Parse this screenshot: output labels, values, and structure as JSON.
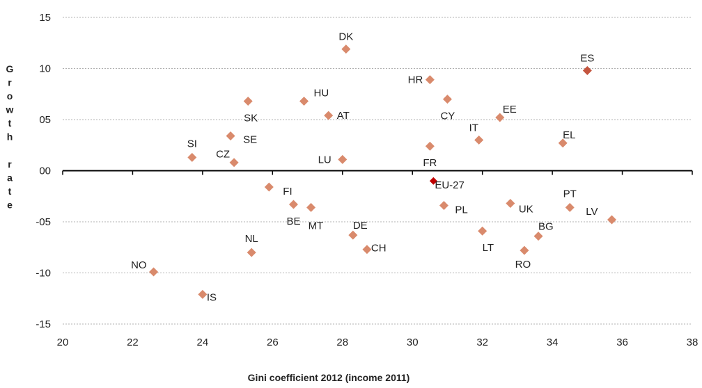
{
  "chart_data": {
    "type": "scatter",
    "xlabel": "Gini coefficient 2012 (income 2011)",
    "ylabel": "Growth rate",
    "xlim": [
      20,
      38
    ],
    "ylim": [
      -15,
      15
    ],
    "x_ticks": [
      "20",
      "22",
      "24",
      "26",
      "28",
      "30",
      "32",
      "34",
      "36",
      "38"
    ],
    "y_ticks": [
      "15",
      "10",
      "05",
      "00",
      "-05",
      "-10",
      "-15"
    ],
    "grid": "horizontal dotted",
    "colors": {
      "point": "#d98a6c",
      "highlight_es": "#c4553f",
      "highlight_eu": "#c00000",
      "grid": "#b0b0b0",
      "axis": "#000000"
    },
    "points": [
      {
        "label": "DK",
        "x": 28.1,
        "y": 11.9
      },
      {
        "label": "ES",
        "x": 35.0,
        "y": 9.8,
        "highlight": "es"
      },
      {
        "label": "HR",
        "x": 30.5,
        "y": 8.9
      },
      {
        "label": "CY",
        "x": 31.0,
        "y": 7.0
      },
      {
        "label": "SK",
        "x": 25.3,
        "y": 6.8
      },
      {
        "label": "HU",
        "x": 26.9,
        "y": 6.8
      },
      {
        "label": "AT",
        "x": 27.6,
        "y": 5.4
      },
      {
        "label": "EE",
        "x": 32.5,
        "y": 5.2
      },
      {
        "label": "SE",
        "x": 24.8,
        "y": 3.4
      },
      {
        "label": "IT",
        "x": 31.9,
        "y": 3.0
      },
      {
        "label": "EL",
        "x": 34.3,
        "y": 2.7
      },
      {
        "label": "FR",
        "x": 30.5,
        "y": 2.4
      },
      {
        "label": "SI",
        "x": 23.7,
        "y": 1.3
      },
      {
        "label": "LU",
        "x": 28.0,
        "y": 1.1
      },
      {
        "label": "CZ",
        "x": 24.9,
        "y": 0.8
      },
      {
        "label": "EU-27",
        "x": 30.6,
        "y": -1.0,
        "highlight": "eu"
      },
      {
        "label": "FI",
        "x": 25.9,
        "y": -1.6
      },
      {
        "label": "BE",
        "x": 26.6,
        "y": -3.3
      },
      {
        "label": "MT",
        "x": 27.1,
        "y": -3.6
      },
      {
        "label": "PL",
        "x": 30.9,
        "y": -3.4
      },
      {
        "label": "UK",
        "x": 32.8,
        "y": -3.2
      },
      {
        "label": "PT",
        "x": 34.5,
        "y": -3.6
      },
      {
        "label": "LV",
        "x": 35.7,
        "y": -4.8
      },
      {
        "label": "LT",
        "x": 32.0,
        "y": -5.9
      },
      {
        "label": "DE",
        "x": 28.3,
        "y": -6.3
      },
      {
        "label": "BG",
        "x": 33.6,
        "y": -6.4
      },
      {
        "label": "CH",
        "x": 28.7,
        "y": -7.7
      },
      {
        "label": "RO",
        "x": 33.2,
        "y": -7.8
      },
      {
        "label": "NL",
        "x": 25.4,
        "y": -8.0
      },
      {
        "label": "NO",
        "x": 22.6,
        "y": -9.9
      },
      {
        "label": "IS",
        "x": 24.0,
        "y": -12.1
      }
    ]
  }
}
